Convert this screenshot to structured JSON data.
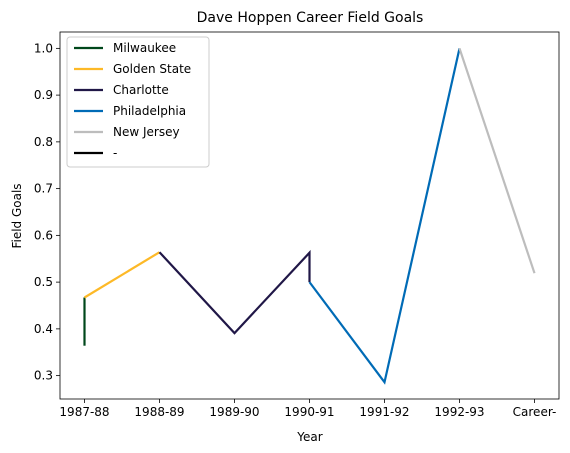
{
  "chart_data": {
    "type": "line",
    "title": "Dave Hoppen Career Field Goals",
    "xlabel": "Year",
    "ylabel": "Field Goals",
    "categories": [
      "1987-88",
      "1988-89",
      "1989-90",
      "1990-91",
      "1991-92",
      "1992-93",
      "Career-"
    ],
    "ylim": [
      0.25,
      1.035
    ],
    "yticks": [
      0.3,
      0.4,
      0.5,
      0.6,
      0.7,
      0.8,
      0.9,
      1.0
    ],
    "ytick_labels": [
      "0.3",
      "0.4",
      "0.5",
      "0.6",
      "0.7",
      "0.8",
      "0.9",
      "1.0"
    ],
    "grid": false,
    "legend_position": "top-left",
    "series": [
      {
        "name": "Milwaukee",
        "color": "#00471b",
        "points": [
          {
            "x": "1987-88",
            "y": 0.364
          },
          {
            "x": "1987-88",
            "y": 0.467
          }
        ]
      },
      {
        "name": "Golden State",
        "color": "#fdb927",
        "points": [
          {
            "x": "1987-88",
            "y": 0.467
          },
          {
            "x": "1988-89",
            "y": 0.564
          }
        ]
      },
      {
        "name": "Charlotte",
        "color": "#201747",
        "points": [
          {
            "x": "1988-89",
            "y": 0.564
          },
          {
            "x": "1989-90",
            "y": 0.391
          },
          {
            "x": "1990-91",
            "y": 0.563
          },
          {
            "x": "1990-91",
            "y": 0.5
          }
        ]
      },
      {
        "name": "Philadelphia",
        "color": "#006bb6",
        "points": [
          {
            "x": "1990-91",
            "y": 0.5
          },
          {
            "x": "1991-92",
            "y": 0.286
          },
          {
            "x": "1992-93",
            "y": 1.0
          }
        ]
      },
      {
        "name": "New Jersey",
        "color": "#bdbdbd",
        "points": [
          {
            "x": "1992-93",
            "y": 1.0
          },
          {
            "x": "Career-",
            "y": 0.519
          }
        ]
      },
      {
        "name": "-",
        "color": "#000000",
        "points": []
      }
    ]
  }
}
